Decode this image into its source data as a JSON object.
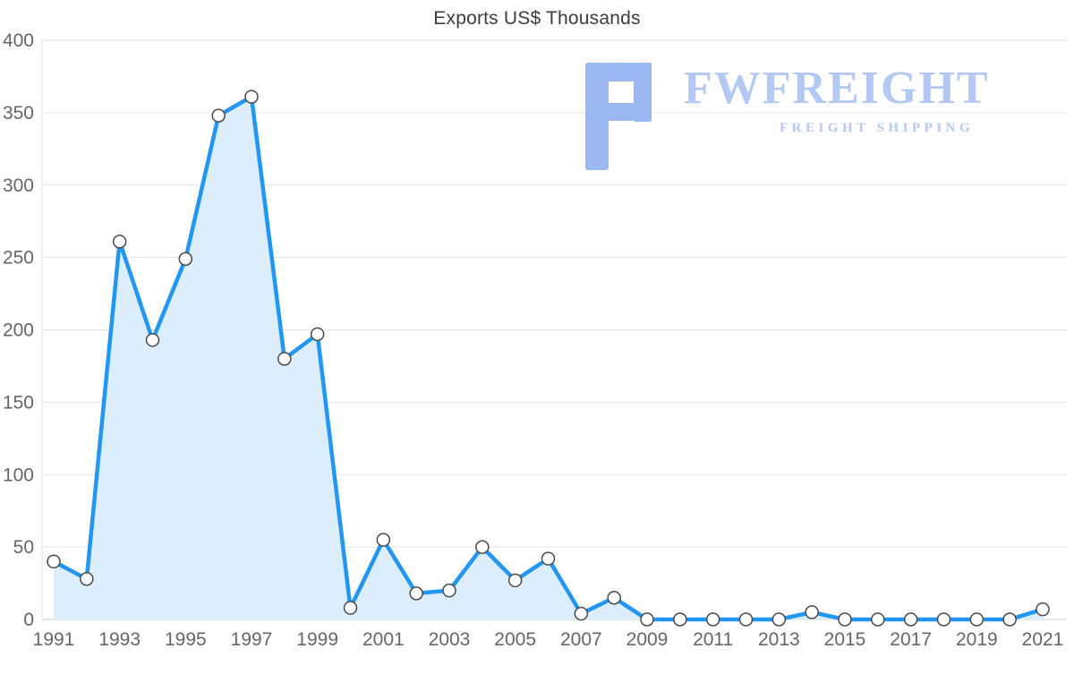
{
  "page": {
    "title": "Exports US$ Thousands"
  },
  "watermark": {
    "brand": "FWFREIGHT",
    "tagline": "FREIGHT SHIPPING",
    "color": "#b3c8f2",
    "icon_color": "#9cb8f0"
  },
  "chart_data": {
    "type": "area",
    "title": "Exports US$ Thousands",
    "x": [
      1991,
      1992,
      1993,
      1994,
      1995,
      1996,
      1997,
      1998,
      1999,
      2000,
      2001,
      2002,
      2003,
      2004,
      2005,
      2006,
      2007,
      2008,
      2009,
      2010,
      2011,
      2012,
      2013,
      2014,
      2015,
      2016,
      2017,
      2018,
      2019,
      2020,
      2021
    ],
    "values": [
      40,
      28,
      261,
      193,
      249,
      348,
      361,
      180,
      197,
      8,
      55,
      18,
      20,
      50,
      27,
      42,
      4,
      15,
      0,
      0,
      0,
      0,
      0,
      5,
      0,
      0,
      0,
      0,
      0,
      0,
      7
    ],
    "ylim": [
      0,
      400
    ],
    "ytick_step": 50,
    "xtick_every": 2,
    "grid": true,
    "legend": "none",
    "xlabel": "",
    "ylabel": "",
    "line_color": "#2196f3",
    "fill_color": "#dcedfc",
    "marker_fill": "#ffffff",
    "marker_stroke": "#4a4a4a",
    "grid_color": "#e2e2e2",
    "axis_line_color": "#d0d0d0",
    "tick_label_color": "#666666"
  }
}
